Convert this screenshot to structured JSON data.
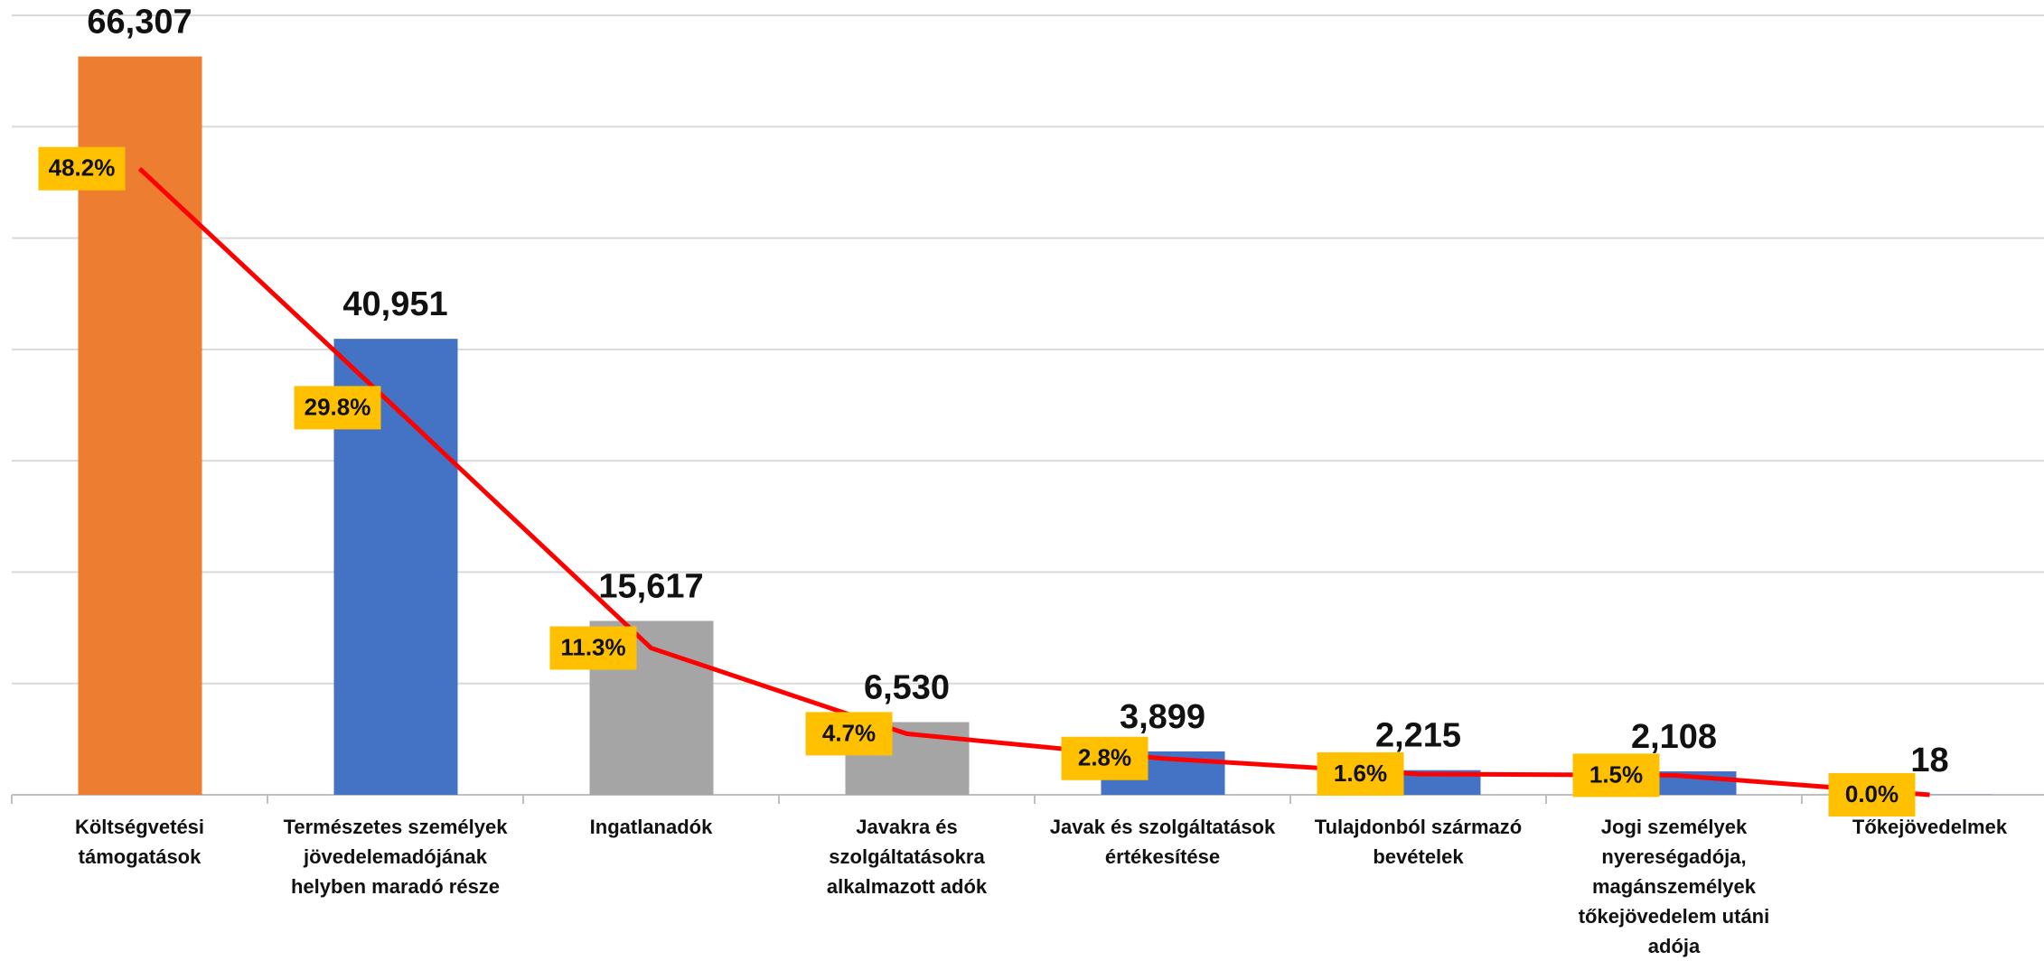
{
  "chart_data": {
    "type": "bar",
    "categories": [
      "Költségvetési támogatások",
      "Természetes személyek jövedelemadójának helyben maradó része",
      "Ingatlanadók",
      "Javakra és szolgáltatásokra alkalmazott adók",
      "Javak és szolgáltatások értékesítése",
      "Tulajdonból származó bevételek",
      "Jogi személyek nyereségadója, magánszemélyek tőkejövedelem utáni adója",
      "Tőkejövedelmek"
    ],
    "values": [
      66307,
      40951,
      15617,
      6530,
      3899,
      2215,
      2108,
      18
    ],
    "value_labels": [
      "66,307",
      "40,951",
      "15,617",
      "6,530",
      "3,899",
      "2,215",
      "2,108",
      "18"
    ],
    "colors": [
      "#ed7d31",
      "#4472c4",
      "#a5a5a5",
      "#a5a5a5",
      "#4472c4",
      "#4472c4",
      "#4472c4",
      "#4472c4"
    ],
    "line": {
      "values": [
        48.2,
        29.8,
        11.3,
        4.7,
        2.8,
        1.6,
        1.5,
        0.0
      ],
      "value_labels": [
        "48.2%",
        "29.8%",
        "11.3%",
        "4.7%",
        "2.8%",
        "1.6%",
        "1.5%",
        "0.0%"
      ],
      "color": "#ff0000",
      "label_color": "#ffc000",
      "axis": "y2"
    },
    "ylim": [
      0,
      70000
    ],
    "yticks": [
      0,
      10000,
      20000,
      30000,
      40000,
      50000,
      60000,
      70000
    ],
    "y2lim": [
      0,
      60
    ],
    "grid": true
  }
}
